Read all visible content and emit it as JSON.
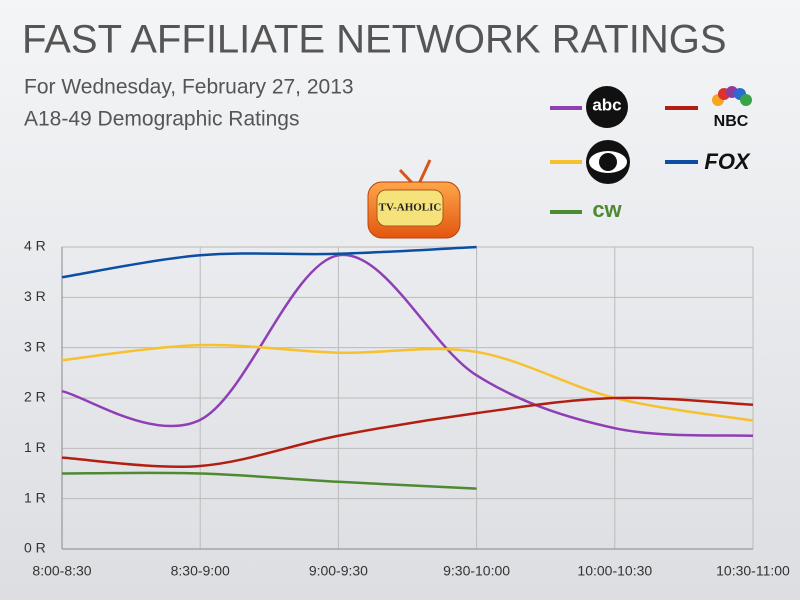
{
  "chart_data": {
    "type": "line",
    "title": "FAST AFFILIATE NETWORK RATINGS",
    "subtitle": [
      "For Wednesday, February 27, 2013",
      "A18-49 Demographic Ratings"
    ],
    "logo_text": "TV-AHOLIC",
    "categories": [
      "8:00-8:30",
      "8:30-9:00",
      "9:00-9:30",
      "9:30-10:00",
      "10:00-10:30",
      "10:30-11:00"
    ],
    "series": [
      {
        "name": "abc",
        "color": "#8e3fb5",
        "values": [
          2.09,
          1.71,
          3.89,
          2.3,
          1.6,
          1.5
        ]
      },
      {
        "color": "#f7c12e",
        "values": [
          2.5,
          2.7,
          2.6,
          2.61,
          2.0,
          1.7
        ]
      },
      {
        "name": "NBC",
        "color": "#b21f12",
        "values": [
          1.21,
          1.1,
          1.5,
          1.8,
          2.0,
          1.91
        ]
      },
      {
        "name": "FOX",
        "color": "#0b4ea2",
        "values": [
          3.6,
          3.89,
          3.91,
          4.0,
          null,
          null
        ]
      },
      {
        "name": "cw",
        "color": "#4e8a31",
        "values": [
          1.0,
          1.0,
          0.89,
          0.8,
          null,
          null
        ]
      }
    ],
    "ylim": [
      0,
      4
    ],
    "yticks": [
      {
        "value": 0,
        "label": "0 R"
      },
      {
        "value": 0.667,
        "label": "1 R"
      },
      {
        "value": 1.333,
        "label": "1 R"
      },
      {
        "value": 2,
        "label": "2 R"
      },
      {
        "value": 2.667,
        "label": "3 R"
      },
      {
        "value": 3.333,
        "label": "3 R"
      },
      {
        "value": 4,
        "label": "4 R"
      }
    ],
    "grid": true
  }
}
